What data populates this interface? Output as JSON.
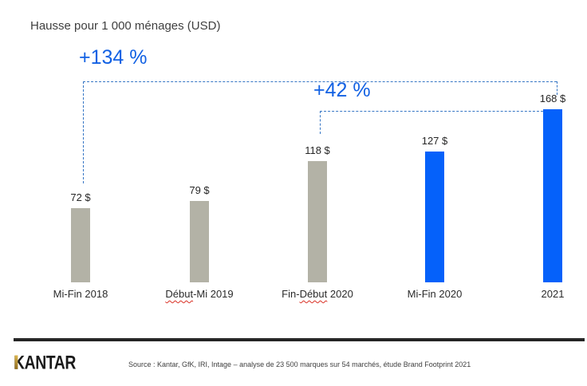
{
  "header": {
    "title": "Hausse pour 1 000 ménages (USD)"
  },
  "chart_data": {
    "type": "bar",
    "title": "Hausse pour 1 000 ménages (USD)",
    "categories": [
      "Mi-Fin 2018",
      "Début-Mi 2019",
      "Fin-Début 2020",
      "Mi-Fin 2020",
      "2021"
    ],
    "values": [
      72,
      79,
      118,
      127,
      168
    ],
    "value_labels": [
      "72 $",
      "79 $",
      "118 $",
      "127 $",
      "168 $"
    ],
    "bar_colors": [
      "#b3b2a6",
      "#b3b2a6",
      "#b3b2a6",
      "#0561fa",
      "#0561fa"
    ],
    "unit": "USD",
    "ylim": [
      0,
      180
    ],
    "grid": false,
    "legend": false,
    "annotations": [
      {
        "label": "+134 %",
        "from": "Mi-Fin 2018",
        "to": "2021"
      },
      {
        "label": "+42 %",
        "from": "Fin-Début 2020",
        "to": "2021"
      }
    ],
    "misspelled_words": [
      "Début"
    ]
  },
  "footer": {
    "logo_text": "KANTAR",
    "source": "Source : Kantar, GfK, IRI, Intage – analyse de 23 500 marques sur 54 marchés, étude Brand Footprint 2021"
  },
  "colors": {
    "bar_gray": "#b3b2a6",
    "bar_blue": "#0561fa",
    "annotation_text_blue": "#1261e3",
    "dashed_line_blue": "#3676c5",
    "spellcheck_red": "#d93025",
    "text_dark": "#262626",
    "footer_rule_black": "#262626",
    "logo_gold": "#c8a13d"
  }
}
